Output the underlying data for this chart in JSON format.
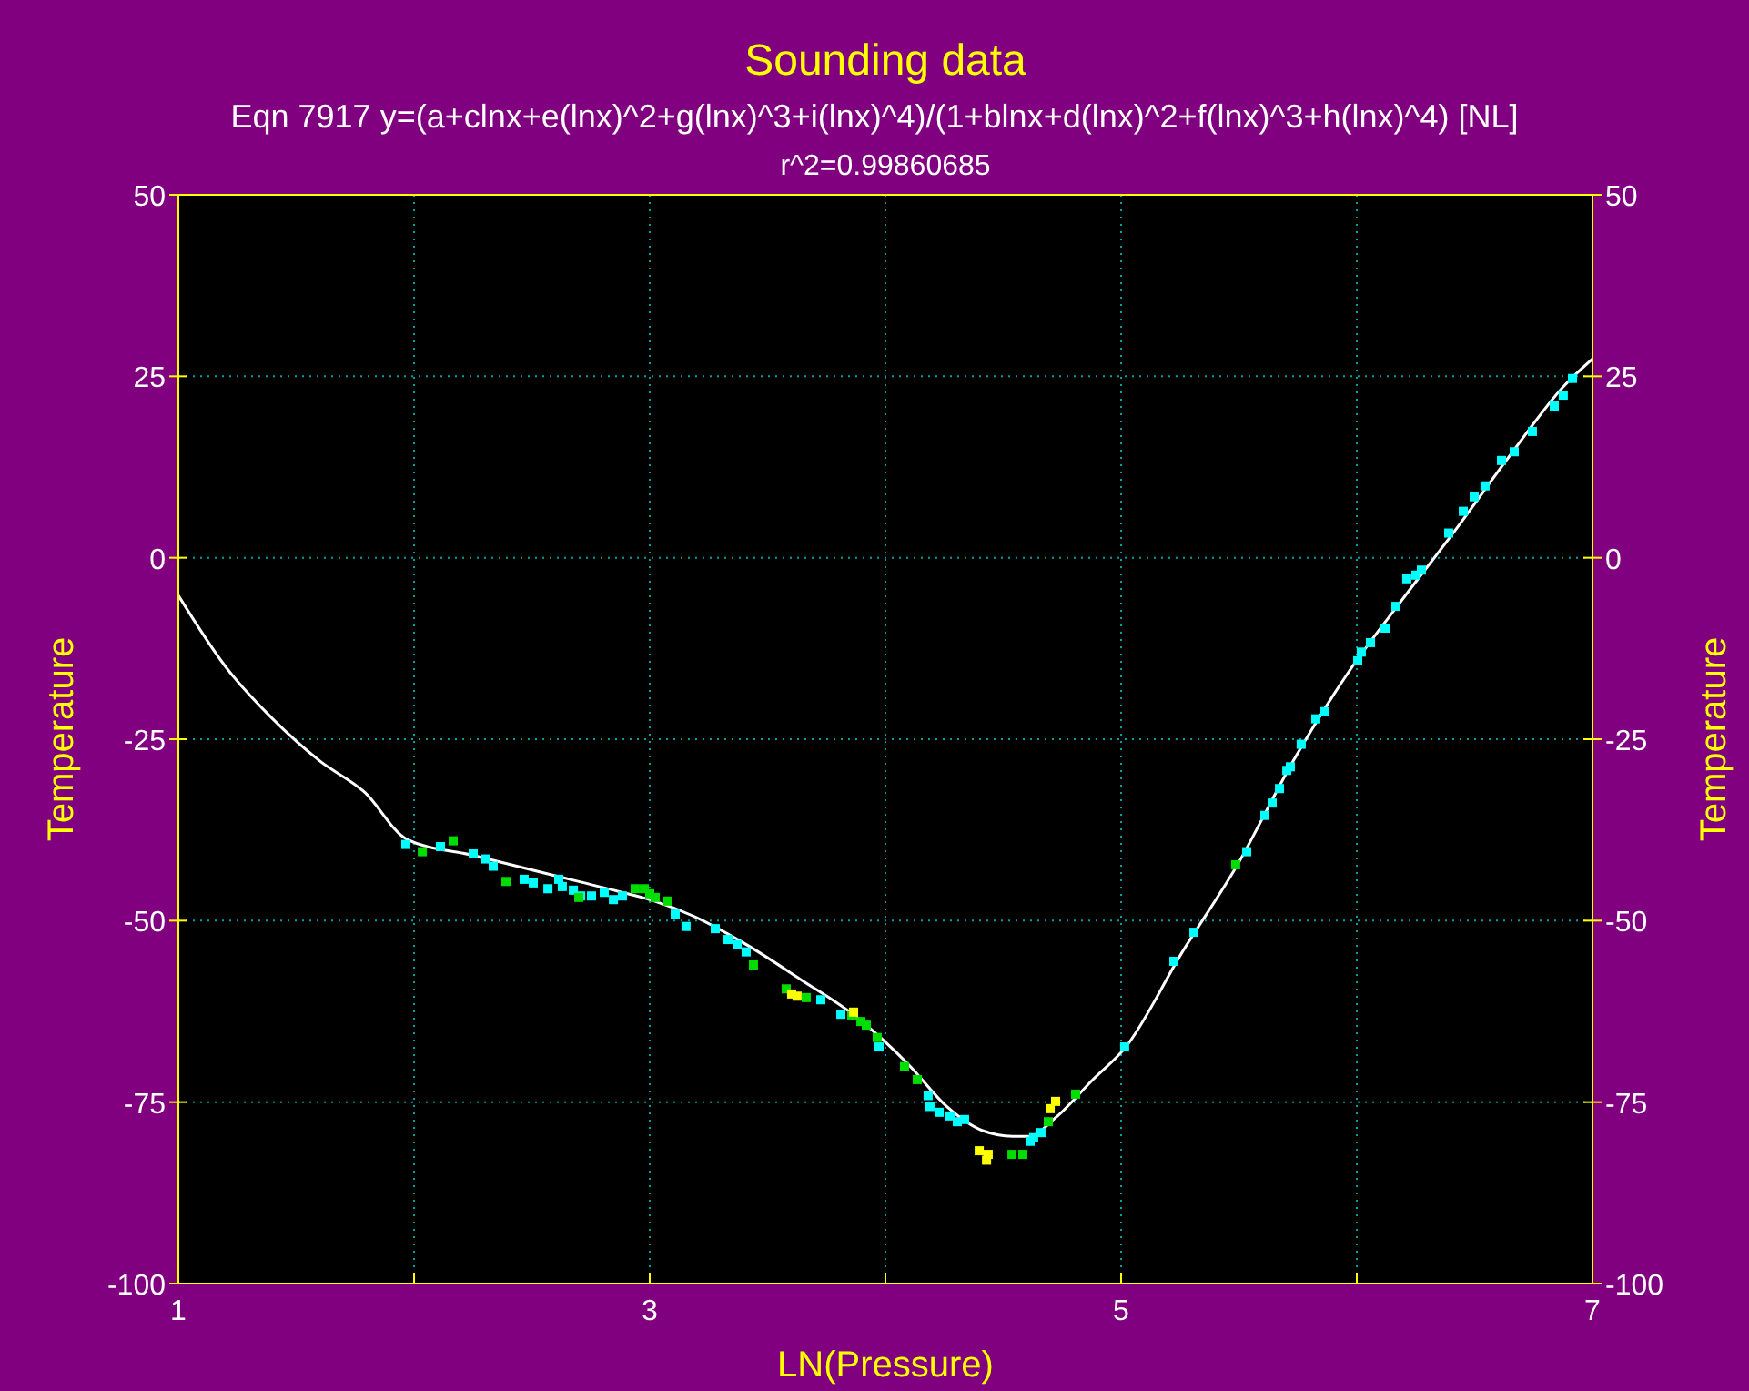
{
  "chart_data": {
    "type": "scatter",
    "title": "Sounding data",
    "subtitle": "Eqn 7917  y=(a+clnx+e(lnx)^2+g(lnx)^3+i(lnx)^4)/(1+blnx+d(lnx)^2+f(lnx)^3+h(lnx)^4) [NL]",
    "annotations": [
      "r^2=0.99860685"
    ],
    "xlabel": "LN(Pressure)",
    "ylabel": "Temperature",
    "y2label": "Temperature",
    "xlim": [
      1,
      7
    ],
    "xticks": [
      1,
      {
        "value": 2,
        "label": null
      },
      3,
      {
        "value": 4,
        "label": null
      },
      5,
      {
        "value": 6,
        "label": null
      },
      7
    ],
    "ylim": [
      -100,
      50
    ],
    "yticks": [
      -100,
      -75,
      -50,
      -25,
      0,
      25,
      50
    ],
    "y2lim": [
      -100,
      50
    ],
    "y2ticks": [
      -100,
      -75,
      -50,
      -25,
      0,
      25,
      50
    ],
    "grid": true,
    "marker": "square",
    "series": [
      {
        "type": "line",
        "color": "#ffffff",
        "marker": "none",
        "line_style": "solid",
        "x": [
          1,
          1.2,
          1.4,
          1.6,
          1.79,
          1.97,
          2.25,
          2.56,
          2.87,
          3.02,
          3.18,
          3.41,
          3.64,
          3.87,
          4.1,
          4.26,
          4.41,
          4.54,
          4.61,
          4.72,
          4.88,
          5.02,
          5.26,
          5.49,
          5.73,
          5.96,
          6.19,
          6.42,
          6.65,
          6.88,
          7
        ],
        "values": [
          -5.2,
          -15,
          -22.2,
          -28,
          -32.3,
          -38.8,
          -41,
          -43.5,
          -46,
          -47.3,
          -49.3,
          -53.3,
          -58.1,
          -63.1,
          -69.9,
          -75.6,
          -78.9,
          -79.7,
          -79.7,
          -77.2,
          -71.9,
          -67.4,
          -54.3,
          -42.5,
          -28,
          -16,
          -5.9,
          3.9,
          14.1,
          23.7,
          27.4
        ]
      },
      {
        "color": "#00ffff",
        "x": [
          1.965,
          2.112,
          2.251,
          2.305,
          2.336,
          2.467,
          2.506,
          2.568,
          2.614,
          2.629,
          2.676,
          2.707,
          2.753,
          2.807,
          2.846,
          2.884,
          3.108,
          3.154,
          3.278,
          3.332,
          3.371,
          3.409,
          3.726,
          3.811,
          3.973,
          4.181,
          4.189,
          4.228,
          4.274,
          4.305,
          4.336,
          4.614,
          4.629,
          4.66,
          5.015,
          5.224,
          5.309,
          5.533,
          5.61,
          5.641,
          5.672,
          5.703,
          5.718,
          5.764,
          5.826,
          5.865,
          6.004,
          6.019,
          6.058,
          6.12,
          6.166,
          6.212,
          6.251,
          6.274,
          6.39,
          6.452,
          6.498,
          6.544,
          6.614,
          6.668,
          6.745,
          6.838,
          6.876,
          6.915
        ],
        "values": [
          -39.5,
          -39.8,
          -40.8,
          -41.5,
          -42.5,
          -44.3,
          -44.8,
          -45.6,
          -44.3,
          -45.3,
          -45.8,
          -46.6,
          -46.6,
          -46.1,
          -47.1,
          -46.6,
          -49.1,
          -50.8,
          -51.1,
          -52.6,
          -53.3,
          -54.3,
          -60.9,
          -62.9,
          -67.4,
          -74.1,
          -75.6,
          -76.4,
          -76.9,
          -77.7,
          -77.4,
          -80.4,
          -79.9,
          -79.2,
          -67.4,
          -55.6,
          -51.6,
          -40.5,
          -35.5,
          -33.8,
          -31.8,
          -29.3,
          -28.8,
          -25.7,
          -22.2,
          -21.2,
          -14.2,
          -13,
          -11.7,
          -9.7,
          -6.7,
          -2.9,
          -2.4,
          -1.7,
          3.4,
          6.4,
          8.4,
          9.9,
          13.4,
          14.6,
          17.4,
          20.9,
          22.4,
          24.7
        ]
      },
      {
        "color": "#00dd00",
        "x": [
          2.035,
          2.166,
          2.39,
          2.699,
          2.938,
          2.977,
          3,
          3.023,
          3.077,
          3.44,
          3.579,
          3.664,
          3.857,
          3.896,
          3.919,
          3.965,
          4.081,
          4.135,
          4.537,
          4.583,
          4.691,
          4.807,
          5.486
        ],
        "values": [
          -40.5,
          -39,
          -44.6,
          -46.8,
          -45.6,
          -45.6,
          -46.3,
          -46.8,
          -47.3,
          -56.1,
          -59.4,
          -60.6,
          -63.1,
          -63.9,
          -64.4,
          -66.1,
          -70.1,
          -71.9,
          -82.2,
          -82.2,
          -77.7,
          -73.9,
          -42.3
        ]
      },
      {
        "color": "#ffff00",
        "x": [
          3.602,
          3.625,
          3.865,
          4.398,
          4.436,
          4.429,
          4.699,
          4.722
        ],
        "values": [
          -60.1,
          -60.4,
          -62.6,
          -81.7,
          -82.2,
          -83,
          -75.9,
          -74.9
        ]
      }
    ]
  }
}
